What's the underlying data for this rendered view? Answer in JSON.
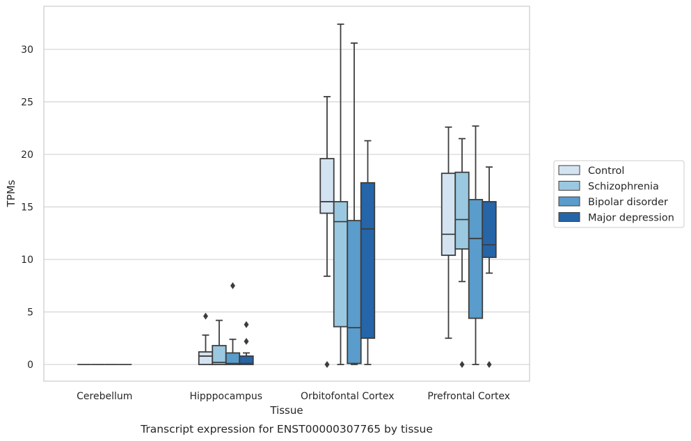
{
  "chart_data": {
    "type": "box",
    "title": "Transcript expression for ENST00000307765 by tissue",
    "xlabel": "Tissue",
    "ylabel": "TPMs",
    "ylim": [
      -1.6,
      34.2
    ],
    "yticks": [
      0,
      5,
      10,
      15,
      20,
      25,
      30
    ],
    "grid": true,
    "legend_position": "right",
    "categories": [
      "Cerebellum",
      "Hipppocampus",
      "Orbitofontal Cortex",
      "Prefrontal Cortex"
    ],
    "series": [
      {
        "name": "Control",
        "color": "#d3e3f1",
        "boxes": [
          {
            "whislo": 0,
            "q1": 0,
            "med": 0,
            "q3": 0,
            "whishi": 0,
            "fliers": []
          },
          {
            "whislo": 0,
            "q1": 0,
            "med": 0.8,
            "q3": 1.2,
            "whishi": 2.8,
            "fliers": [
              4.6
            ]
          },
          {
            "whislo": 8.4,
            "q1": 14.4,
            "med": 15.5,
            "q3": 19.6,
            "whishi": 25.5,
            "fliers": [
              0
            ]
          },
          {
            "whislo": 2.5,
            "q1": 10.4,
            "med": 12.4,
            "q3": 18.2,
            "whishi": 22.6,
            "fliers": []
          }
        ]
      },
      {
        "name": "Schizophrenia",
        "color": "#9ac8e0",
        "boxes": [
          {
            "whislo": 0,
            "q1": 0,
            "med": 0,
            "q3": 0,
            "whishi": 0,
            "fliers": []
          },
          {
            "whislo": 0,
            "q1": 0,
            "med": 0.2,
            "q3": 1.8,
            "whishi": 4.2,
            "fliers": []
          },
          {
            "whislo": 0,
            "q1": 3.6,
            "med": 13.6,
            "q3": 15.5,
            "whishi": 32.4,
            "fliers": []
          },
          {
            "whislo": 7.9,
            "q1": 11.0,
            "med": 13.8,
            "q3": 18.3,
            "whishi": 21.5,
            "fliers": [
              0
            ]
          }
        ]
      },
      {
        "name": "Bipolar disorder",
        "color": "#5a9ccb",
        "boxes": [
          {
            "whislo": 0,
            "q1": 0,
            "med": 0,
            "q3": 0,
            "whishi": 0,
            "fliers": []
          },
          {
            "whislo": 0,
            "q1": 0,
            "med": 0.1,
            "q3": 1.1,
            "whishi": 2.4,
            "fliers": [
              7.5
            ]
          },
          {
            "whislo": 0,
            "q1": 0.1,
            "med": 3.5,
            "q3": 13.7,
            "whishi": 30.6,
            "fliers": []
          },
          {
            "whislo": 0,
            "q1": 4.4,
            "med": 12.0,
            "q3": 15.7,
            "whishi": 22.7,
            "fliers": []
          }
        ]
      },
      {
        "name": "Major depression",
        "color": "#2565a8",
        "boxes": [
          {
            "whislo": 0,
            "q1": 0,
            "med": 0,
            "q3": 0,
            "whishi": 0,
            "fliers": []
          },
          {
            "whislo": 0,
            "q1": 0,
            "med": 0.1,
            "q3": 0.8,
            "whishi": 1.1,
            "fliers": [
              2.2,
              3.8
            ]
          },
          {
            "whislo": 0,
            "q1": 2.5,
            "med": 12.9,
            "q3": 17.3,
            "whishi": 21.3,
            "fliers": []
          },
          {
            "whislo": 8.7,
            "q1": 10.2,
            "med": 11.4,
            "q3": 15.5,
            "whishi": 18.8,
            "fliers": [
              0
            ]
          }
        ]
      }
    ]
  }
}
